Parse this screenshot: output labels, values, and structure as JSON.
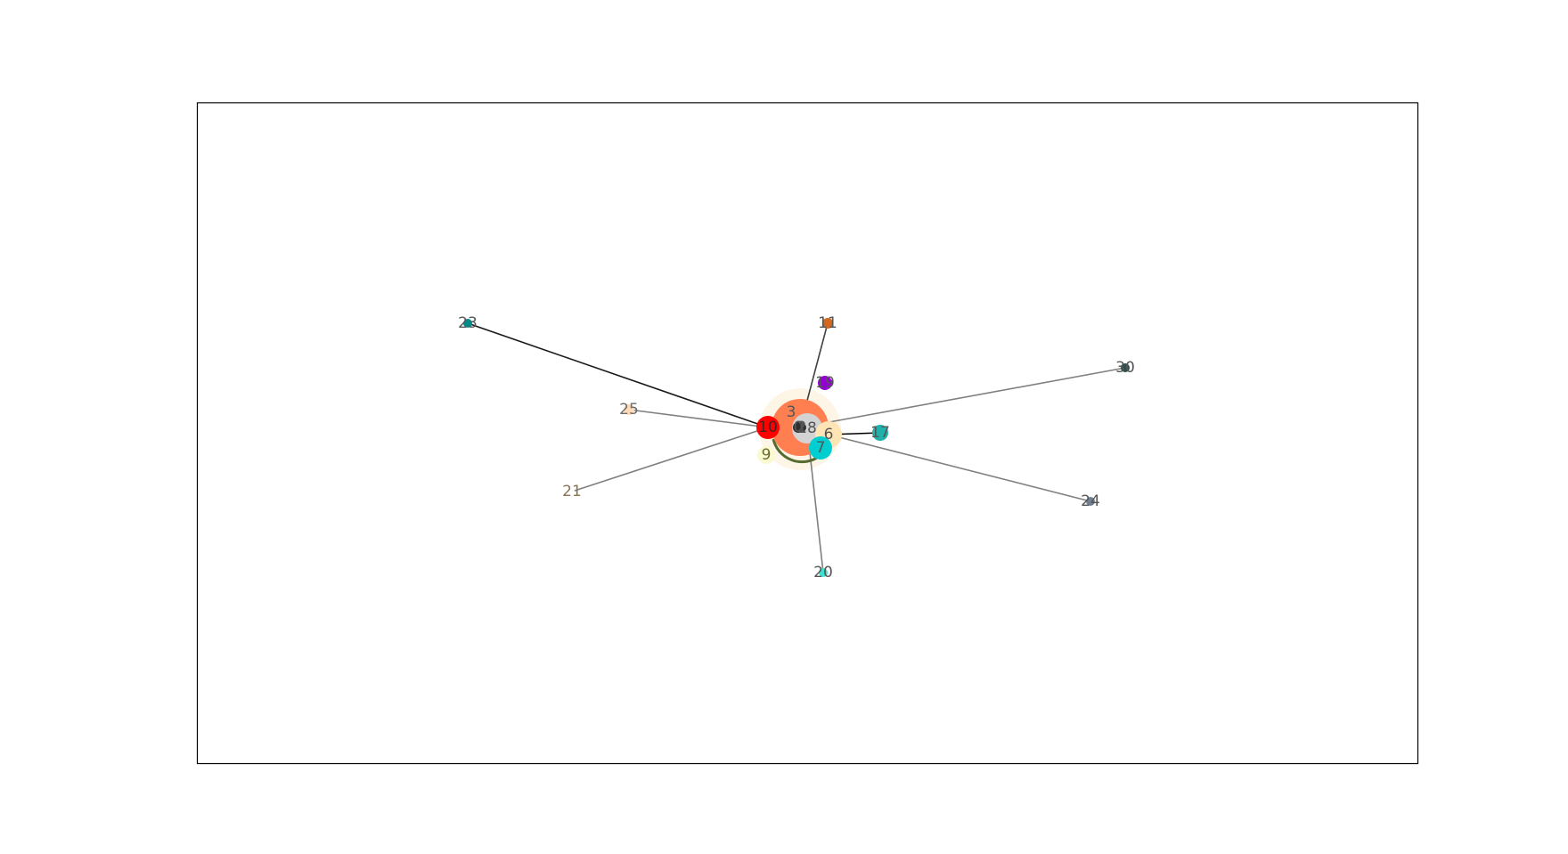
{
  "graph": {
    "nodes": [
      {
        "id": "0",
        "label": "0",
        "color": "#2f2f2f"
      },
      {
        "id": "2",
        "label": "2",
        "color": "#2f2f2f"
      },
      {
        "id": "3",
        "label": "3",
        "color": "#ff7f50"
      },
      {
        "id": "6",
        "label": "6",
        "color": "#ffe4b5"
      },
      {
        "id": "7",
        "label": "7",
        "color": "#00ced1"
      },
      {
        "id": "9",
        "label": "9",
        "color": "#fafad2"
      },
      {
        "id": "10",
        "label": "10",
        "color": "#ff0000"
      },
      {
        "id": "11",
        "label": "11",
        "color": "#d2691e"
      },
      {
        "id": "17",
        "label": "17",
        "color": "#20b2aa"
      },
      {
        "id": "18",
        "label": "18",
        "color": "#d3d3d3"
      },
      {
        "id": "19",
        "label": "19",
        "color": "#9400d3"
      },
      {
        "id": "20",
        "label": "20",
        "color": "#40e0d0"
      },
      {
        "id": "21",
        "label": "21",
        "color": "#ffffff"
      },
      {
        "id": "23",
        "label": "23",
        "color": "#008b8b"
      },
      {
        "id": "24",
        "label": "24",
        "color": "#708090"
      },
      {
        "id": "25",
        "label": "25",
        "color": "#ffdab9"
      },
      {
        "id": "30",
        "label": "30",
        "color": "#2f4f4f"
      }
    ],
    "edges": [
      {
        "source": "10",
        "target": "23",
        "color": "#1a1a1a"
      },
      {
        "source": "10",
        "target": "25",
        "color": "#808080"
      },
      {
        "source": "10",
        "target": "21",
        "color": "#808080"
      },
      {
        "source": "3",
        "target": "11",
        "color": "#404040"
      },
      {
        "source": "3",
        "target": "30",
        "color": "#808080"
      },
      {
        "source": "6",
        "target": "17",
        "color": "#000000"
      },
      {
        "source": "6",
        "target": "24",
        "color": "#808080"
      },
      {
        "source": "18",
        "target": "20",
        "color": "#808080"
      }
    ]
  }
}
